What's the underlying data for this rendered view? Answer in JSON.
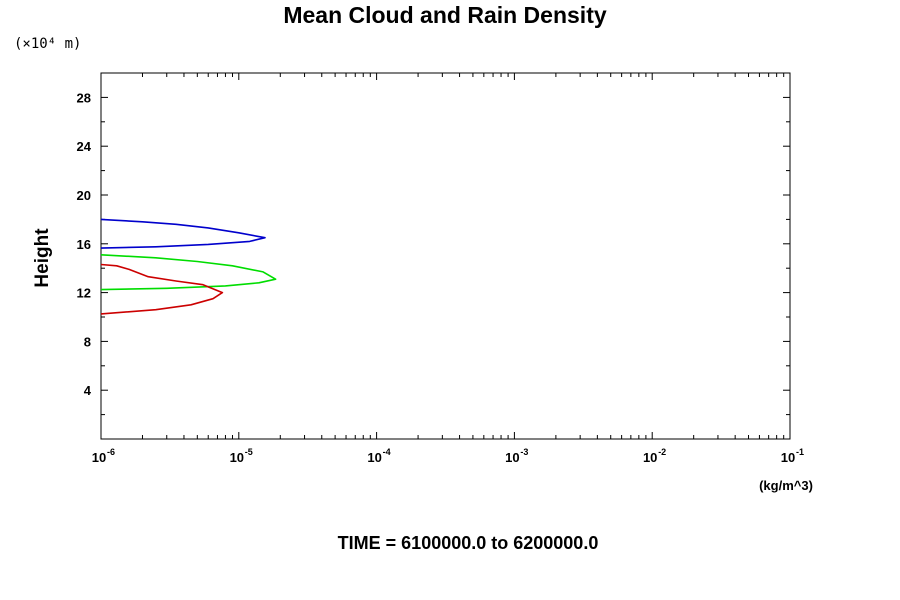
{
  "chart_data": {
    "type": "line",
    "title": "Mean Cloud and Rain Density",
    "ylabel": "Height",
    "y_scale_note": "(×10⁴ m)",
    "x_unit": "(kg/m^3)",
    "footer": "TIME = 6100000.0 to 6200000.0",
    "x_scale": "log",
    "xlim": [
      1e-06,
      0.1
    ],
    "ylim": [
      0,
      30
    ],
    "grid": false,
    "y_ticks": [
      4,
      8,
      12,
      16,
      20,
      24,
      28
    ],
    "y_tick_labels": [
      "4",
      "8",
      "12",
      "16",
      "20",
      "24",
      "28"
    ],
    "x_ticks": [
      {
        "base": "10",
        "exp": "-6",
        "value": 1e-06
      },
      {
        "base": "10",
        "exp": "-5",
        "value": 1e-05
      },
      {
        "base": "10",
        "exp": "-4",
        "value": 0.0001
      },
      {
        "base": "10",
        "exp": "-3",
        "value": 0.001
      },
      {
        "base": "10",
        "exp": "-2",
        "value": 0.01
      },
      {
        "base": "10",
        "exp": "-1",
        "value": 0.1
      }
    ],
    "series": [
      {
        "color": "#0000cc",
        "points": [
          [
            1e-06,
            18.0
          ],
          [
            2e-06,
            17.8
          ],
          [
            3.5e-06,
            17.6
          ],
          [
            6e-06,
            17.3
          ],
          [
            1e-05,
            16.9
          ],
          [
            1.55e-05,
            16.5
          ],
          [
            1.2e-05,
            16.2
          ],
          [
            6e-06,
            15.95
          ],
          [
            2.5e-06,
            15.75
          ],
          [
            1e-06,
            15.65
          ]
        ]
      },
      {
        "color": "#00dd00",
        "points": [
          [
            1e-06,
            15.1
          ],
          [
            2.5e-06,
            14.85
          ],
          [
            5e-06,
            14.55
          ],
          [
            9e-06,
            14.2
          ],
          [
            1.5e-05,
            13.7
          ],
          [
            1.85e-05,
            13.1
          ],
          [
            1.4e-05,
            12.8
          ],
          [
            8e-06,
            12.55
          ],
          [
            3e-06,
            12.35
          ],
          [
            1e-06,
            12.25
          ]
        ]
      },
      {
        "color": "#cc0000",
        "points": [
          [
            1e-06,
            14.3
          ],
          [
            1.3e-06,
            14.2
          ],
          [
            1.6e-06,
            13.9
          ],
          [
            2.2e-06,
            13.3
          ],
          [
            3.5e-06,
            12.95
          ],
          [
            5.5e-06,
            12.65
          ],
          [
            7.6e-06,
            12.0
          ],
          [
            6.5e-06,
            11.5
          ],
          [
            4.5e-06,
            11.0
          ],
          [
            2.5e-06,
            10.6
          ],
          [
            1e-06,
            10.25
          ]
        ]
      }
    ]
  }
}
